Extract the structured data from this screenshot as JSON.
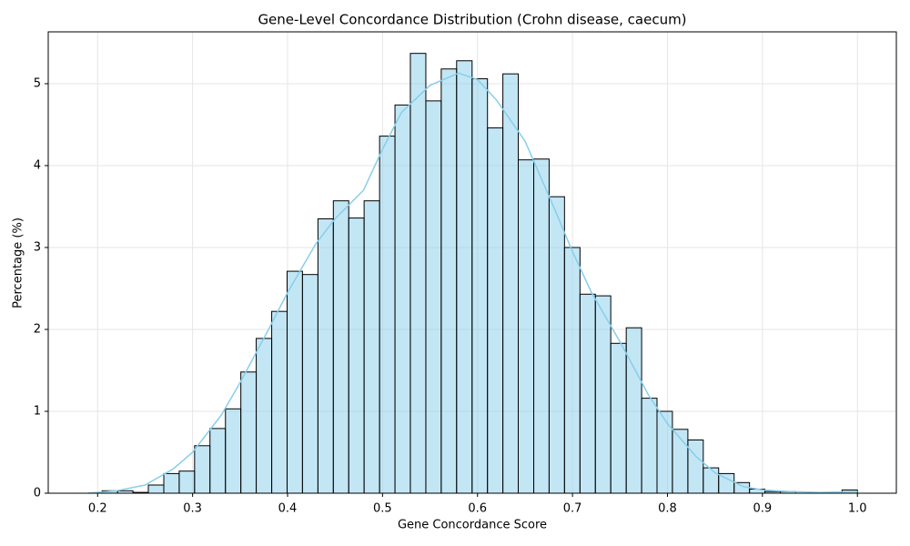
{
  "chart_data": {
    "type": "histogram",
    "title": "Gene-Level Concordance Distribution (Crohn disease, caecum)",
    "x_label": "Gene Concordance Score",
    "y_label": "Percentage (%)",
    "bins": [
      0.1885,
      0.2047,
      0.221,
      0.2372,
      0.2534,
      0.2697,
      0.2859,
      0.3021,
      0.3183,
      0.3346,
      0.3508,
      0.367,
      0.3833,
      0.3995,
      0.4157,
      0.432,
      0.4482,
      0.4644,
      0.4806,
      0.4969,
      0.5131,
      0.5293,
      0.5456,
      0.5618,
      0.578,
      0.5943,
      0.6105,
      0.6267,
      0.6429,
      0.6592,
      0.6754,
      0.6916,
      0.7079,
      0.7241,
      0.7403,
      0.7566,
      0.7728,
      0.789,
      0.8052,
      0.8215,
      0.8377,
      0.8539,
      0.8702,
      0.8864,
      0.9026,
      0.9189,
      0.9351,
      0.9513,
      0.9675,
      0.9838,
      1.0
    ],
    "values": [
      0,
      0.03,
      0.03,
      0.01,
      0.1,
      0.24,
      0.27,
      0.58,
      0.79,
      1.03,
      1.48,
      1.89,
      2.22,
      2.71,
      2.67,
      3.35,
      3.57,
      3.36,
      3.57,
      4.36,
      4.74,
      5.37,
      4.79,
      5.18,
      5.28,
      5.06,
      4.46,
      5.12,
      4.07,
      4.08,
      3.62,
      3.0,
      2.43,
      2.41,
      1.83,
      2.02,
      1.16,
      1.0,
      0.78,
      0.65,
      0.31,
      0.24,
      0.13,
      0.05,
      0.02,
      0.02,
      0,
      0,
      0,
      0.04
    ],
    "color": "#87ceeb",
    "edgecolor": "#000000",
    "kde": {
      "x": [
        0.19,
        0.22,
        0.25,
        0.28,
        0.3,
        0.33,
        0.35,
        0.38,
        0.4,
        0.43,
        0.45,
        0.48,
        0.5,
        0.52,
        0.55,
        0.58,
        0.6,
        0.62,
        0.65,
        0.68,
        0.7,
        0.72,
        0.75,
        0.78,
        0.8,
        0.83,
        0.85,
        0.88,
        0.9,
        0.93,
        0.96,
        1.0
      ],
      "values": [
        0.0,
        0.03,
        0.1,
        0.3,
        0.5,
        0.95,
        1.35,
        2.0,
        2.45,
        3.05,
        3.35,
        3.7,
        4.2,
        4.65,
        4.98,
        5.13,
        5.05,
        4.8,
        4.3,
        3.5,
        2.95,
        2.45,
        1.85,
        1.2,
        0.85,
        0.45,
        0.25,
        0.08,
        0.04,
        0.02,
        0.01,
        0.02
      ],
      "color": "#87ceeb"
    },
    "xlim": [
      0.148,
      1.041
    ],
    "ylim": [
      0,
      5.633
    ],
    "xticks": [
      0.2,
      0.3,
      0.4,
      0.5,
      0.6,
      0.7,
      0.8,
      0.9,
      {
        "value": 1.0,
        "label": "1.0"
      }
    ],
    "yticks": [
      0,
      1,
      2,
      3,
      4,
      5
    ],
    "grid": true
  }
}
